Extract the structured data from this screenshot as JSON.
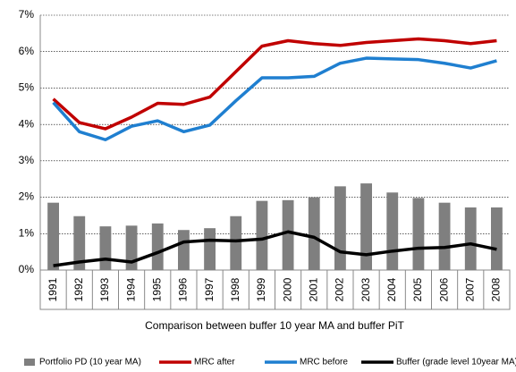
{
  "chart_data": {
    "type": "combo",
    "xlabel": "Comparison between buffer 10 year MA and buffer PiT",
    "categories": [
      "1991",
      "1992",
      "1993",
      "1994",
      "1995",
      "1996",
      "1997",
      "1998",
      "1999",
      "2000",
      "2001",
      "2002",
      "2003",
      "2004",
      "2005",
      "2006",
      "2007",
      "2008"
    ],
    "ylim": [
      0,
      7
    ],
    "yticks": [
      {
        "value": 0,
        "label": "0%"
      },
      {
        "value": 1,
        "label": "1%"
      },
      {
        "value": 2,
        "label": "2%"
      },
      {
        "value": 3,
        "label": "3%"
      },
      {
        "value": 4,
        "label": "4%"
      },
      {
        "value": 5,
        "label": "5%"
      },
      {
        "value": 6,
        "label": "6%"
      },
      {
        "value": 7,
        "label": "7%"
      }
    ],
    "grid": true,
    "legend": "bottom",
    "series": [
      {
        "name": "Portfolio PD (10 year MA)",
        "type": "bar",
        "color": "#7f7f7f",
        "values": [
          1.85,
          1.48,
          1.2,
          1.22,
          1.28,
          1.1,
          1.15,
          1.48,
          1.9,
          1.92,
          2.0,
          2.3,
          2.38,
          2.13,
          1.98,
          1.85,
          1.72,
          1.72
        ]
      },
      {
        "name": "MRC after",
        "type": "line",
        "color": "#c00000",
        "values": [
          4.7,
          4.05,
          3.88,
          4.2,
          4.58,
          4.55,
          4.75,
          5.45,
          6.15,
          6.3,
          6.22,
          6.17,
          6.25,
          6.3,
          6.35,
          6.3,
          6.22,
          6.3
        ]
      },
      {
        "name": "MRC before",
        "type": "line",
        "color": "#1f7fd0",
        "values": [
          4.6,
          3.8,
          3.58,
          3.95,
          4.1,
          3.8,
          3.98,
          4.65,
          5.28,
          5.28,
          5.32,
          5.68,
          5.82,
          5.8,
          5.78,
          5.68,
          5.55,
          5.75
        ]
      },
      {
        "name": "Buffer (grade level 10year MA)",
        "type": "line",
        "color": "#000000",
        "values": [
          0.12,
          0.22,
          0.3,
          0.22,
          0.48,
          0.77,
          0.82,
          0.8,
          0.85,
          1.05,
          0.9,
          0.5,
          0.42,
          0.52,
          0.6,
          0.62,
          0.72,
          0.57
        ]
      }
    ]
  }
}
